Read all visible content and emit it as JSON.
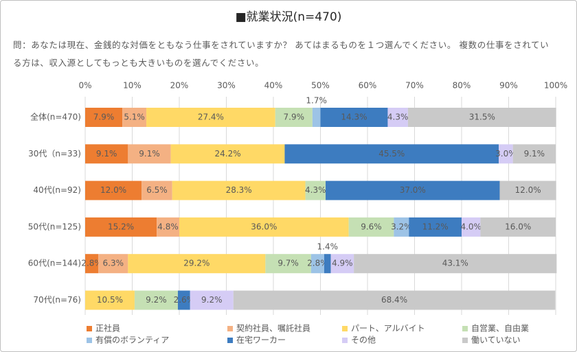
{
  "chart_data": {
    "type": "stacked_barh",
    "title": "■就業状況(n=470)",
    "subtitle": "問：あなたは現在、金銭的な対価をともなう仕事をされていますか？ あてはまるものを１つ選んでください。 複数の仕事をされている方は、収入源としてもっとも大きいものを選んでください。",
    "categories": [
      "全体(n=470)",
      "30代（n=33)",
      "40代(n=92)",
      "50代(n=125)",
      "60代(n=144)",
      "70代(n=76)"
    ],
    "xlim": [
      0,
      100
    ],
    "xticks": [
      {
        "value": 0,
        "label": "0%"
      },
      {
        "value": 10,
        "label": "10%"
      },
      {
        "value": 20,
        "label": "20%"
      },
      {
        "value": 30,
        "label": "30%"
      },
      {
        "value": 40,
        "label": "40%"
      },
      {
        "value": 50,
        "label": "50%"
      },
      {
        "value": 60,
        "label": "60%"
      },
      {
        "value": 70,
        "label": "70%"
      },
      {
        "value": 80,
        "label": "80%"
      },
      {
        "value": 90,
        "label": "90%"
      },
      {
        "value": 100,
        "label": "100%"
      }
    ],
    "grid": true,
    "legend": "bottom",
    "series": [
      {
        "name": "正社員",
        "color": "#ED7D31",
        "values": [
          7.9,
          9.1,
          12.0,
          15.2,
          2.8,
          0
        ],
        "value_labels": [
          "7.9%",
          "9.1%",
          "12.0%",
          "15.2%",
          "2.8%",
          null
        ]
      },
      {
        "name": "契約社員、嘱託社員",
        "color": "#F4B183",
        "values": [
          5.1,
          9.1,
          6.5,
          4.8,
          6.3,
          0
        ],
        "value_labels": [
          "5.1%",
          "9.1%",
          "6.5%",
          "4.8%",
          "6.3%",
          null
        ]
      },
      {
        "name": "パート、アルバイト",
        "color": "#FFD966",
        "values": [
          27.4,
          24.2,
          28.3,
          36.0,
          29.2,
          10.5
        ],
        "value_labels": [
          "27.4%",
          "24.2%",
          "28.3%",
          "36.0%",
          "29.2%",
          "10.5%"
        ]
      },
      {
        "name": "自営業、自由業",
        "color": "#C5E0B4",
        "values": [
          7.9,
          0,
          4.3,
          9.6,
          9.7,
          9.2
        ],
        "value_labels": [
          "7.9%",
          null,
          "4.3%",
          "9.6%",
          "9.7%",
          "9.2%"
        ]
      },
      {
        "name": "有償のボランティア",
        "color": "#9DC3E6",
        "values": [
          1.7,
          0,
          0,
          3.2,
          2.8,
          0
        ],
        "value_labels": [
          "1.7%",
          null,
          null,
          "3.2%",
          "2.8%",
          null
        ]
      },
      {
        "name": "在宅ワーカー",
        "color": "#3D7CC0",
        "values": [
          14.3,
          45.5,
          37.0,
          11.2,
          1.4,
          2.6
        ],
        "value_labels": [
          "14.3%",
          "45.5%",
          "37.0%",
          "11.2%",
          "1.4%",
          "2.6%"
        ]
      },
      {
        "name": "その他",
        "color": "#D5CCF5",
        "values": [
          4.3,
          3.0,
          0,
          4.0,
          4.9,
          9.2
        ],
        "value_labels": [
          "4.3%",
          "3.0%",
          null,
          "4.0%",
          "4.9%",
          "9.2%"
        ]
      },
      {
        "name": "働いていない",
        "color": "#C9C9C9",
        "values": [
          31.5,
          9.1,
          12.0,
          16.0,
          43.1,
          68.4
        ],
        "value_labels": [
          "31.5%",
          "9.1%",
          "12.0%",
          "16.0%",
          "43.1%",
          "68.4%"
        ]
      }
    ]
  }
}
